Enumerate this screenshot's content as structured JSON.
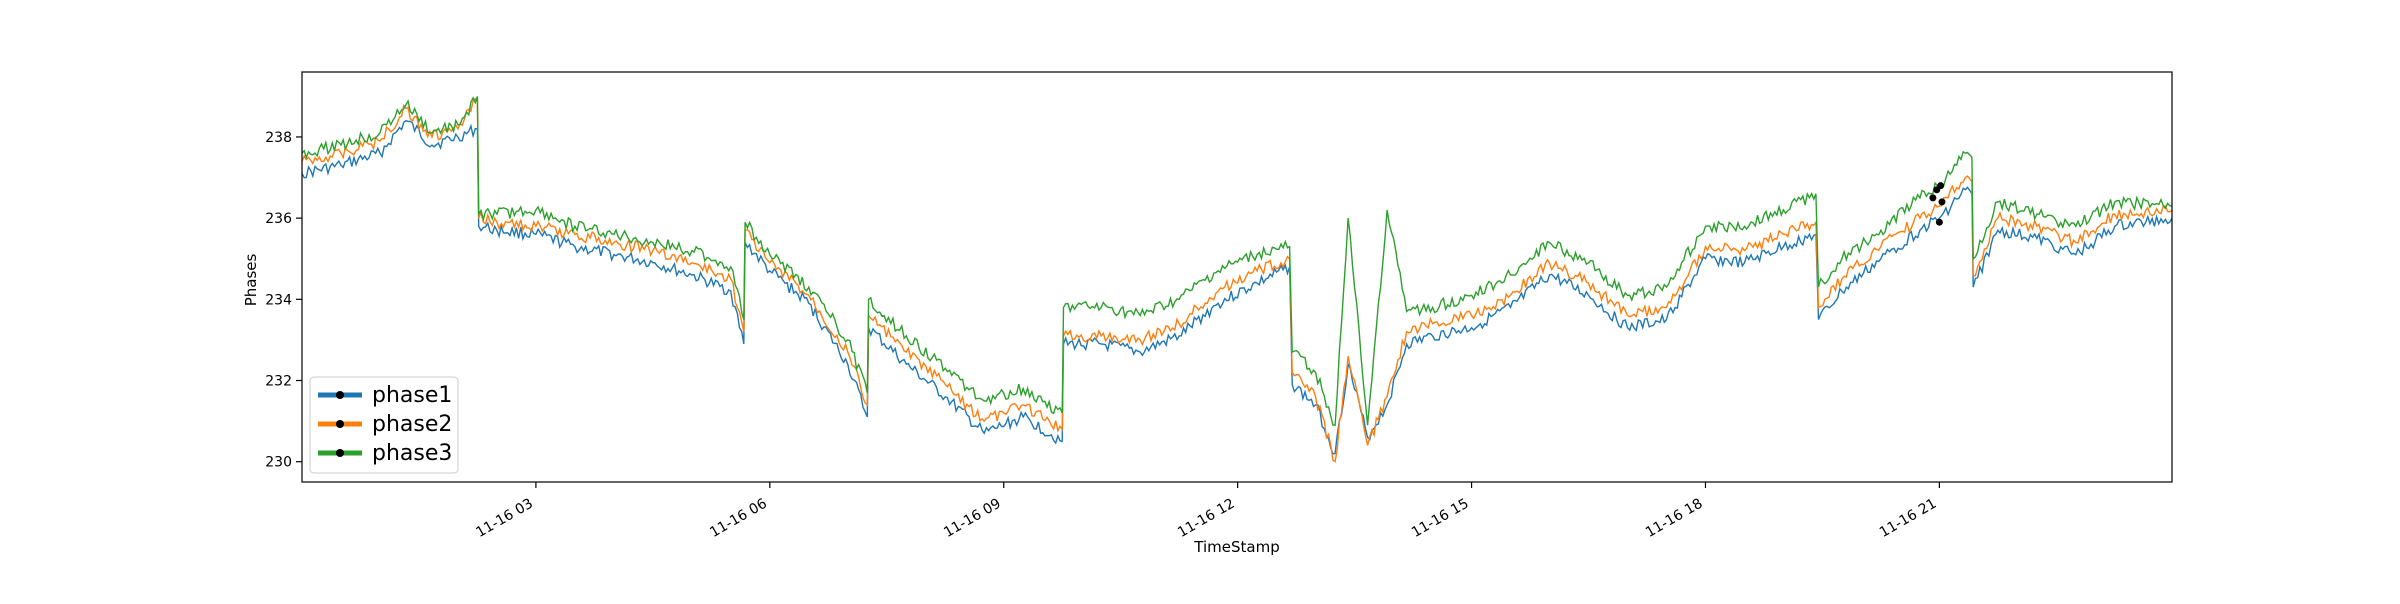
{
  "chart_data": {
    "type": "line",
    "title": "",
    "xlabel": "TimeStamp",
    "ylabel": "Phases",
    "xlim": [
      "2023-11-16 00:00",
      "2023-11-16 23:59"
    ],
    "ylim": [
      229.5,
      239.6
    ],
    "x_ticks": [
      {
        "value": "2023-11-16 03:00",
        "label": "11-16 03"
      },
      {
        "value": "2023-11-16 06:00",
        "label": "11-16 06"
      },
      {
        "value": "2023-11-16 09:00",
        "label": "11-16 09"
      },
      {
        "value": "2023-11-16 12:00",
        "label": "11-16 12"
      },
      {
        "value": "2023-11-16 15:00",
        "label": "11-16 15"
      },
      {
        "value": "2023-11-16 18:00",
        "label": "11-16 18"
      },
      {
        "value": "2023-11-16 21:00",
        "label": "11-16 21"
      }
    ],
    "y_ticks": [
      230,
      232,
      234,
      236,
      238
    ],
    "grid": false,
    "legend_position": "lower-left",
    "series": [
      {
        "name": "phase1",
        "color": "#1f77b4",
        "x": [
          "2023-11-16 00:00",
          "2023-11-16 00:30",
          "2023-11-16 01:00",
          "2023-11-16 01:20",
          "2023-11-16 01:40",
          "2023-11-16 02:00",
          "2023-11-16 02:15",
          "2023-11-16 02:16",
          "2023-11-16 02:30",
          "2023-11-16 03:00",
          "2023-11-16 03:30",
          "2023-11-16 04:00",
          "2023-11-16 04:30",
          "2023-11-16 05:00",
          "2023-11-16 05:30",
          "2023-11-16 05:40",
          "2023-11-16 05:41",
          "2023-11-16 06:00",
          "2023-11-16 06:30",
          "2023-11-16 07:00",
          "2023-11-16 07:15",
          "2023-11-16 07:16",
          "2023-11-16 07:45",
          "2023-11-16 08:15",
          "2023-11-16 08:45",
          "2023-11-16 09:15",
          "2023-11-16 09:45",
          "2023-11-16 09:46",
          "2023-11-16 10:15",
          "2023-11-16 10:45",
          "2023-11-16 11:15",
          "2023-11-16 11:45",
          "2023-11-16 12:15",
          "2023-11-16 12:40",
          "2023-11-16 12:42",
          "2023-11-16 13:00",
          "2023-11-16 13:15",
          "2023-11-16 13:25",
          "2023-11-16 13:40",
          "2023-11-16 13:55",
          "2023-11-16 14:10",
          "2023-11-16 14:30",
          "2023-11-16 15:00",
          "2023-11-16 15:30",
          "2023-11-16 16:00",
          "2023-11-16 16:30",
          "2023-11-16 17:00",
          "2023-11-16 17:30",
          "2023-11-16 18:00",
          "2023-11-16 18:30",
          "2023-11-16 19:00",
          "2023-11-16 19:25",
          "2023-11-16 19:27",
          "2023-11-16 19:45",
          "2023-11-16 20:15",
          "2023-11-16 20:45",
          "2023-11-16 21:00",
          "2023-11-16 21:20",
          "2023-11-16 21:25",
          "2023-11-16 21:26",
          "2023-11-16 21:45",
          "2023-11-16 22:15",
          "2023-11-16 22:45",
          "2023-11-16 23:15",
          "2023-11-16 23:59"
        ],
        "values": [
          237.1,
          237.3,
          237.6,
          238.4,
          237.8,
          238.0,
          238.2,
          235.8,
          235.7,
          235.6,
          235.3,
          235.1,
          234.9,
          234.6,
          234.2,
          232.9,
          235.4,
          234.7,
          233.9,
          232.4,
          231.1,
          233.3,
          232.4,
          231.6,
          230.7,
          231.1,
          230.5,
          232.9,
          232.9,
          232.7,
          233.1,
          233.9,
          234.4,
          234.8,
          231.9,
          231.4,
          230.2,
          232.4,
          230.6,
          231.4,
          232.9,
          233.1,
          233.3,
          233.8,
          234.6,
          234.1,
          233.3,
          233.5,
          235.0,
          234.9,
          235.3,
          235.6,
          233.5,
          234.2,
          235.0,
          235.7,
          236.0,
          236.7,
          236.6,
          234.3,
          235.7,
          235.5,
          235.1,
          235.8,
          236.0
        ]
      },
      {
        "name": "phase2",
        "color": "#ff7f0e",
        "x": [
          "2023-11-16 00:00",
          "2023-11-16 00:30",
          "2023-11-16 01:00",
          "2023-11-16 01:20",
          "2023-11-16 01:40",
          "2023-11-16 02:00",
          "2023-11-16 02:15",
          "2023-11-16 02:16",
          "2023-11-16 02:30",
          "2023-11-16 03:00",
          "2023-11-16 03:30",
          "2023-11-16 04:00",
          "2023-11-16 04:30",
          "2023-11-16 05:00",
          "2023-11-16 05:30",
          "2023-11-16 05:40",
          "2023-11-16 05:41",
          "2023-11-16 06:00",
          "2023-11-16 06:30",
          "2023-11-16 07:00",
          "2023-11-16 07:15",
          "2023-11-16 07:16",
          "2023-11-16 07:45",
          "2023-11-16 08:15",
          "2023-11-16 08:45",
          "2023-11-16 09:15",
          "2023-11-16 09:45",
          "2023-11-16 09:46",
          "2023-11-16 10:15",
          "2023-11-16 10:45",
          "2023-11-16 11:15",
          "2023-11-16 11:45",
          "2023-11-16 12:15",
          "2023-11-16 12:40",
          "2023-11-16 12:42",
          "2023-11-16 13:00",
          "2023-11-16 13:15",
          "2023-11-16 13:25",
          "2023-11-16 13:40",
          "2023-11-16 13:55",
          "2023-11-16 14:10",
          "2023-11-16 14:30",
          "2023-11-16 15:00",
          "2023-11-16 15:30",
          "2023-11-16 16:00",
          "2023-11-16 16:30",
          "2023-11-16 17:00",
          "2023-11-16 17:30",
          "2023-11-16 18:00",
          "2023-11-16 18:30",
          "2023-11-16 19:00",
          "2023-11-16 19:25",
          "2023-11-16 19:27",
          "2023-11-16 19:45",
          "2023-11-16 20:15",
          "2023-11-16 20:45",
          "2023-11-16 21:00",
          "2023-11-16 21:20",
          "2023-11-16 21:25",
          "2023-11-16 21:26",
          "2023-11-16 21:45",
          "2023-11-16 22:15",
          "2023-11-16 22:45",
          "2023-11-16 23:15",
          "2023-11-16 23:59"
        ],
        "values": [
          237.4,
          237.6,
          237.9,
          238.7,
          238.0,
          238.2,
          238.9,
          236.0,
          235.9,
          235.8,
          235.6,
          235.4,
          235.2,
          234.9,
          234.5,
          233.2,
          235.7,
          234.9,
          234.1,
          232.7,
          231.4,
          233.6,
          232.7,
          231.9,
          231.0,
          231.4,
          230.8,
          233.1,
          233.1,
          233.0,
          233.4,
          234.2,
          234.7,
          235.0,
          232.2,
          231.6,
          230.0,
          232.6,
          230.4,
          231.6,
          233.2,
          233.4,
          233.6,
          234.1,
          234.9,
          234.4,
          233.6,
          233.8,
          235.3,
          235.2,
          235.6,
          235.9,
          233.8,
          234.5,
          235.3,
          236.0,
          236.3,
          237.0,
          236.9,
          234.6,
          236.0,
          235.8,
          235.4,
          236.1,
          236.2
        ]
      },
      {
        "name": "phase3",
        "color": "#2ca02c",
        "x": [
          "2023-11-16 00:00",
          "2023-11-16 00:30",
          "2023-11-16 01:00",
          "2023-11-16 01:20",
          "2023-11-16 01:40",
          "2023-11-16 02:00",
          "2023-11-16 02:15",
          "2023-11-16 02:16",
          "2023-11-16 02:30",
          "2023-11-16 03:00",
          "2023-11-16 03:30",
          "2023-11-16 04:00",
          "2023-11-16 04:30",
          "2023-11-16 05:00",
          "2023-11-16 05:30",
          "2023-11-16 05:40",
          "2023-11-16 05:41",
          "2023-11-16 06:00",
          "2023-11-16 06:30",
          "2023-11-16 07:00",
          "2023-11-16 07:15",
          "2023-11-16 07:16",
          "2023-11-16 07:45",
          "2023-11-16 08:15",
          "2023-11-16 08:45",
          "2023-11-16 09:15",
          "2023-11-16 09:45",
          "2023-11-16 09:46",
          "2023-11-16 10:15",
          "2023-11-16 10:45",
          "2023-11-16 11:15",
          "2023-11-16 11:45",
          "2023-11-16 12:15",
          "2023-11-16 12:40",
          "2023-11-16 12:42",
          "2023-11-16 13:00",
          "2023-11-16 13:15",
          "2023-11-16 13:25",
          "2023-11-16 13:40",
          "2023-11-16 13:55",
          "2023-11-16 14:10",
          "2023-11-16 14:30",
          "2023-11-16 15:00",
          "2023-11-16 15:30",
          "2023-11-16 16:00",
          "2023-11-16 16:30",
          "2023-11-16 17:00",
          "2023-11-16 17:30",
          "2023-11-16 18:00",
          "2023-11-16 18:30",
          "2023-11-16 19:00",
          "2023-11-16 19:25",
          "2023-11-16 19:27",
          "2023-11-16 19:45",
          "2023-11-16 20:15",
          "2023-11-16 20:45",
          "2023-11-16 21:00",
          "2023-11-16 21:20",
          "2023-11-16 21:25",
          "2023-11-16 21:26",
          "2023-11-16 21:45",
          "2023-11-16 22:15",
          "2023-11-16 22:45",
          "2023-11-16 23:15",
          "2023-11-16 23:59"
        ],
        "values": [
          237.6,
          237.8,
          238.1,
          238.8,
          238.1,
          238.3,
          239.0,
          236.1,
          236.1,
          236.2,
          235.8,
          235.6,
          235.4,
          235.2,
          234.8,
          233.5,
          235.9,
          235.1,
          234.3,
          233.0,
          231.7,
          234.0,
          233.1,
          232.3,
          231.5,
          231.8,
          231.2,
          233.8,
          233.8,
          233.6,
          234.0,
          234.7,
          235.1,
          235.3,
          232.7,
          232.2,
          230.9,
          236.0,
          230.9,
          236.2,
          233.7,
          233.8,
          234.1,
          234.6,
          235.4,
          234.9,
          234.1,
          234.3,
          235.8,
          235.8,
          236.2,
          236.6,
          234.3,
          235.0,
          235.7,
          236.5,
          236.8,
          237.6,
          237.5,
          235.0,
          236.4,
          236.1,
          235.8,
          236.4,
          236.3
        ]
      }
    ],
    "markers": [
      {
        "x": "2023-11-16 20:55",
        "y": 236.5,
        "color": "#000000"
      },
      {
        "x": "2023-11-16 20:58",
        "y": 236.7,
        "color": "#000000"
      },
      {
        "x": "2023-11-16 21:00",
        "y": 235.9,
        "color": "#000000"
      },
      {
        "x": "2023-11-16 21:01",
        "y": 236.8,
        "color": "#000000"
      },
      {
        "x": "2023-11-16 21:02",
        "y": 236.4,
        "color": "#000000"
      }
    ]
  }
}
